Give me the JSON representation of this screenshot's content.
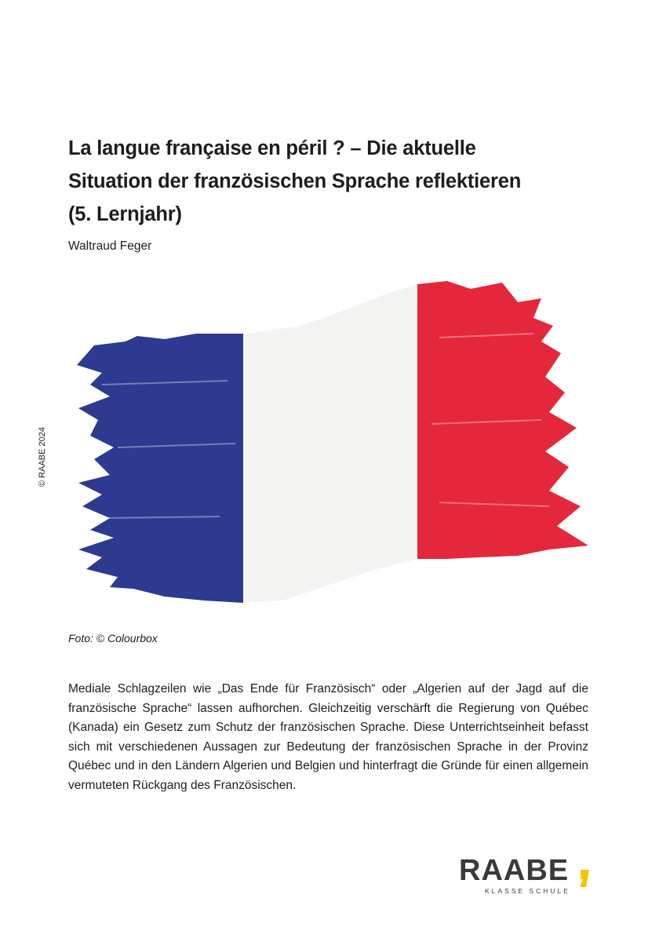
{
  "header": {
    "title_lines": [
      "La langue française en péril ? – Die aktuelle",
      "Situation der französischen Sprache reflektieren",
      "(5. Lernjahr)"
    ],
    "author": "Waltraud Feger"
  },
  "side_note": "© RAABE 2024",
  "image": {
    "caption": "Foto: © Colourbox"
  },
  "intro": "Mediale Schlagzeilen wie „Das Ende für Französisch“ oder „Algerien auf der Jagd auf die französische Sprache“ lassen aufhorchen. Gleichzeitig verschärft die Regierung von Québec (Kanada) ein Gesetz zum Schutz der französischen Sprache. Diese Unterrichtseinheit befasst sich mit verschiedenen Aussagen zur Bedeutung der französischen Sprache in der Provinz Québec und in den Ländern Algerien und Belgien und hinterfragt die Gründe für einen allgemein vermuteten Rückgang des Französischen.",
  "logo": {
    "name": "RAABE",
    "tagline": "KLASSE SCHULE"
  }
}
